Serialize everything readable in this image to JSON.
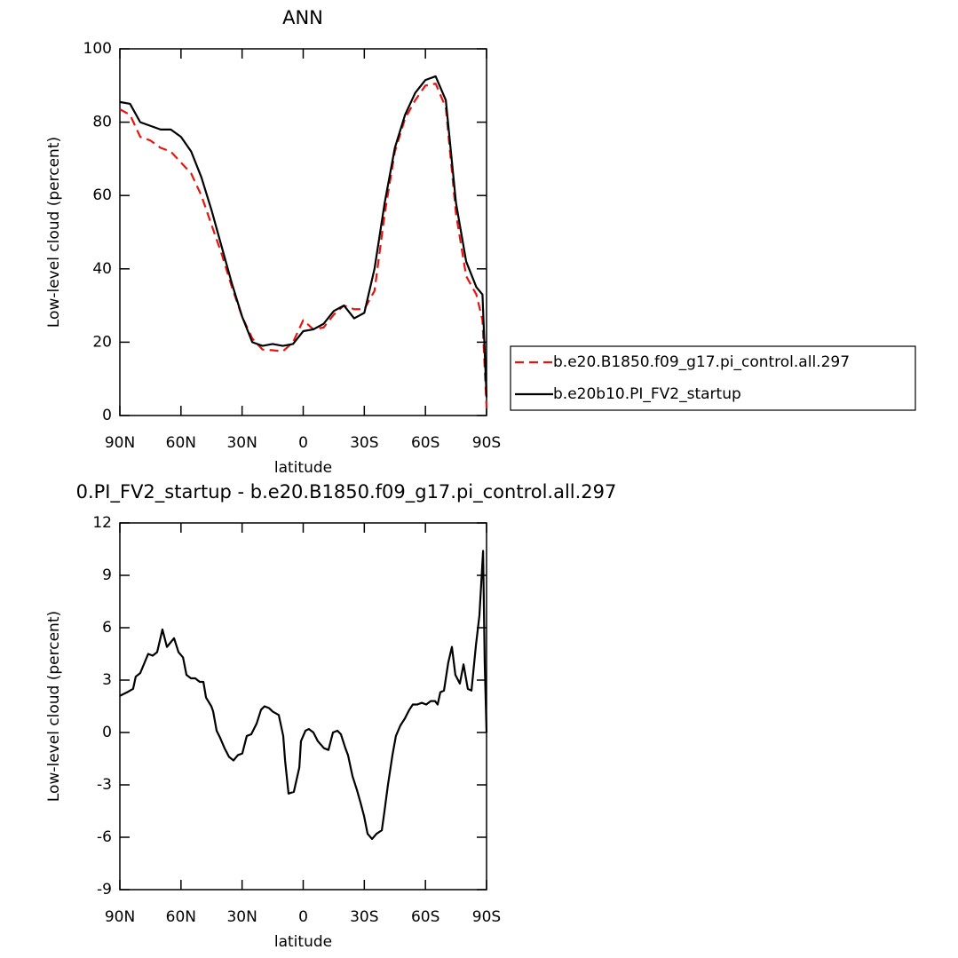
{
  "chart_data": [
    {
      "type": "line",
      "title": "ANN",
      "x_label": "latitude",
      "y_label": "Low-level cloud (percent)",
      "x": [
        90,
        85,
        80,
        75,
        70,
        65,
        60,
        55,
        50,
        45,
        40,
        35,
        30,
        25,
        20,
        15,
        10,
        5,
        0,
        -5,
        -10,
        -15,
        -20,
        -25,
        -30,
        -35,
        -40,
        -45,
        -50,
        -55,
        -60,
        -65,
        -70,
        -75,
        -80,
        -85,
        -88,
        -90
      ],
      "series": [
        {
          "name": "b.e20.B1850.f09_g17.pi_control.all.297",
          "color": "#e8140f",
          "dash": true,
          "values": [
            83.5,
            82,
            76,
            75,
            73,
            72,
            69,
            66,
            60,
            52,
            44,
            35,
            27,
            21,
            18,
            17.8,
            17.5,
            20,
            26,
            23.5,
            24,
            27.5,
            30,
            29,
            29,
            34,
            55,
            72,
            81,
            86,
            90,
            90.5,
            84,
            55,
            38,
            33,
            26,
            2
          ]
        },
        {
          "name": "b.e20b10.PI_FV2_startup",
          "color": "#000000",
          "dash": false,
          "values": [
            85.5,
            85,
            80,
            79,
            78,
            78,
            76,
            72,
            65,
            56,
            46,
            36,
            27,
            20,
            19,
            19.5,
            19,
            19.5,
            23,
            23.5,
            25,
            28.5,
            30,
            26.5,
            28,
            40,
            58,
            73,
            82,
            88,
            91.5,
            92.5,
            86,
            58,
            42,
            35,
            33,
            5
          ]
        }
      ],
      "xlim": [
        90,
        -90
      ],
      "xticks": [
        {
          "value": 90,
          "label": "90N"
        },
        {
          "value": 60,
          "label": "60N"
        },
        {
          "value": 30,
          "label": "30N"
        },
        0,
        {
          "value": -30,
          "label": "30S"
        },
        {
          "value": -60,
          "label": "60S"
        },
        {
          "value": -90,
          "label": "90S"
        }
      ],
      "ylim": [
        0,
        100
      ],
      "yticks": [
        0,
        20,
        40,
        60,
        80,
        100
      ],
      "legend": "right"
    },
    {
      "type": "line",
      "title": "0.PI_FV2_startup - b.e20.B1850.f09_g17.pi_control.all.297",
      "x_label": "latitude",
      "y_label": "Low-level cloud (percent)",
      "color": "#000000",
      "x": [
        90,
        86.5,
        83.5,
        82.2,
        80.0,
        76.1,
        73.9,
        71.7,
        69.1,
        66.9,
        63.4,
        61.2,
        59.0,
        57.3,
        55.1,
        53.0,
        50.8,
        49.0,
        47.7,
        45.1,
        44.2,
        42.5,
        40.8,
        38.6,
        36.4,
        34.2,
        32.1,
        29.9,
        27.7,
        25.5,
        22.9,
        20.7,
        19.0,
        16.8,
        15.0,
        12.0,
        9.8,
        8.9,
        7.2,
        4.6,
        1.9,
        1.1,
        -1.1,
        -2.8,
        -5.0,
        -7.2,
        -10.2,
        -12.4,
        -14.6,
        -16.8,
        -18.5,
        -20.7,
        -22.0,
        -24.2,
        -26.4,
        -28.1,
        -29.9,
        -31.6,
        -33.8,
        -36.0,
        -38.6,
        -39.9,
        -41.6,
        -43.8,
        -45.5,
        -47.7,
        -49.9,
        -52.1,
        -53.8,
        -56.0,
        -58.2,
        -60.4,
        -62.6,
        -64.7,
        -66.0,
        -67.3,
        -69.1,
        -71.2,
        -73.0,
        -74.7,
        -76.9,
        -78.7,
        -80.8,
        -82.6,
        -84.8,
        -86.5,
        -88.3,
        -89.1,
        -90
      ],
      "values": [
        2.1,
        2.3,
        2.5,
        3.2,
        3.4,
        4.5,
        4.4,
        4.6,
        5.9,
        4.9,
        5.4,
        4.6,
        4.3,
        3.3,
        3.1,
        3.1,
        2.9,
        2.9,
        2.0,
        1.5,
        1.2,
        0.1,
        -0.3,
        -0.9,
        -1.4,
        -1.6,
        -1.3,
        -1.2,
        -0.2,
        -0.1,
        0.5,
        1.3,
        1.5,
        1.4,
        1.2,
        1.0,
        -0.2,
        -1.6,
        -3.5,
        -3.4,
        -2.0,
        -0.5,
        0.1,
        0.2,
        0.0,
        -0.5,
        -0.9,
        -1.0,
        0.0,
        0.1,
        -0.1,
        -0.9,
        -1.3,
        -2.5,
        -3.3,
        -4.0,
        -4.8,
        -5.8,
        -6.1,
        -5.8,
        -5.6,
        -4.5,
        -3.0,
        -1.3,
        -0.2,
        0.4,
        0.8,
        1.3,
        1.6,
        1.6,
        1.7,
        1.6,
        1.8,
        1.8,
        1.6,
        2.3,
        2.4,
        4.0,
        4.9,
        3.3,
        2.8,
        3.9,
        2.5,
        2.4,
        5.0,
        6.7,
        10.4,
        4.0,
        0
      ],
      "xlim": [
        90,
        -90
      ],
      "xticks": [
        {
          "value": 90,
          "label": "90N"
        },
        {
          "value": 60,
          "label": "60N"
        },
        {
          "value": 30,
          "label": "30N"
        },
        0,
        {
          "value": -30,
          "label": "30S"
        },
        {
          "value": -60,
          "label": "60S"
        },
        {
          "value": -90,
          "label": "90S"
        }
      ],
      "ylim": [
        -9,
        12
      ],
      "yticks": [
        -9,
        -6,
        -3,
        0,
        3,
        6,
        9,
        12
      ]
    }
  ]
}
